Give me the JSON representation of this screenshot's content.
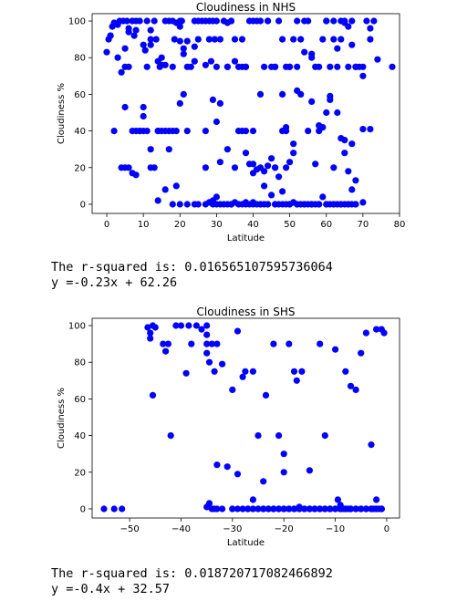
{
  "charts": [
    {
      "id": "nhs",
      "title": "Cloudiness in NHS",
      "xlabel": "Latitude",
      "ylabel": "Cloudiness %",
      "xlim": [
        -4,
        80
      ],
      "ylim": [
        -5,
        104
      ],
      "xticks": [
        0,
        10,
        20,
        30,
        40,
        50,
        60,
        70,
        80
      ],
      "yticks": [
        0,
        20,
        40,
        60,
        80,
        100
      ],
      "color": "#0000ff",
      "output": [
        "The r-squared is: 0.016565107595736064",
        "y =-0.23x + 62.26"
      ],
      "chart_data": {
        "type": "scatter",
        "x": [
          0,
          0.5,
          1,
          1.5,
          2,
          3,
          3.5,
          4.5,
          5,
          5.5,
          6,
          6,
          7,
          7.5,
          8,
          9,
          10,
          10.5,
          11,
          12,
          13,
          13.5,
          14,
          14.5,
          15,
          16,
          17,
          18,
          18.5,
          19,
          20,
          20.5,
          21,
          22,
          23,
          24,
          25,
          26,
          27,
          28,
          28.5,
          29,
          29.5,
          30,
          31,
          32,
          33,
          34,
          35,
          36,
          37,
          38,
          39,
          40,
          41,
          42,
          43,
          44,
          45,
          46,
          47,
          48,
          49,
          50,
          51,
          52,
          53,
          54,
          55,
          56,
          57,
          58,
          59,
          60,
          61,
          62,
          63,
          64,
          65,
          66,
          67,
          68,
          69,
          70,
          71,
          72,
          73,
          74,
          78,
          1,
          3,
          4,
          5,
          6,
          7,
          8,
          9,
          10,
          12,
          14,
          15,
          16,
          18,
          20,
          21,
          22,
          24,
          25,
          27,
          28,
          30,
          33,
          34,
          36,
          37,
          38,
          40,
          42,
          44,
          46,
          48,
          49,
          50,
          52,
          54,
          56,
          58,
          60,
          62,
          64,
          65,
          66,
          67,
          68,
          70,
          72,
          5,
          7,
          8,
          11,
          12,
          14,
          17,
          19,
          20,
          21,
          24,
          27,
          29,
          31,
          33,
          35,
          37,
          38,
          39,
          40,
          41,
          42,
          43,
          44,
          45,
          46,
          47,
          48,
          49,
          50,
          51,
          52,
          55,
          57,
          59,
          60,
          61,
          62,
          63,
          64,
          65,
          66,
          67,
          70,
          2,
          4,
          5,
          6,
          7,
          8,
          9,
          10,
          11,
          12,
          13,
          14,
          15,
          16,
          17,
          18,
          19,
          20,
          22,
          24,
          27,
          30,
          31,
          33,
          35,
          38,
          40,
          43,
          46,
          49,
          51,
          53,
          56,
          58,
          61,
          63,
          65,
          67,
          68,
          70,
          72,
          28,
          29,
          30,
          31,
          32,
          33,
          34,
          35,
          36,
          37,
          38,
          39,
          40,
          41,
          42,
          43,
          44,
          45,
          46,
          47,
          48,
          49,
          50,
          51,
          52,
          53,
          54,
          55,
          56,
          57,
          58,
          59,
          60,
          61,
          62,
          63,
          64,
          65,
          66,
          67,
          68,
          10,
          12,
          16,
          18,
          20,
          22,
          25,
          27,
          29,
          30,
          34,
          38,
          40,
          42,
          44,
          46,
          48,
          50,
          52,
          54,
          56,
          58,
          60,
          62,
          64,
          66,
          68
        ],
        "y": [
          83,
          90,
          92,
          97,
          99,
          98,
          100,
          100,
          75,
          100,
          96,
          94,
          100,
          92,
          100,
          100,
          87,
          84,
          100,
          95,
          100,
          90,
          78,
          75,
          76,
          100,
          100,
          75,
          90,
          99,
          100,
          100,
          82,
          75,
          75,
          86,
          90,
          100,
          100,
          100,
          78,
          100,
          90,
          100,
          90,
          100,
          75,
          100,
          90,
          75,
          75,
          75,
          100,
          40,
          100,
          100,
          75,
          100,
          75,
          75,
          100,
          90,
          75,
          75,
          90,
          100,
          90,
          83,
          100,
          80,
          75,
          75,
          90,
          100,
          75,
          100,
          75,
          100,
          100,
          75,
          100,
          75,
          75,
          75,
          100,
          90,
          100,
          79,
          75,
          92,
          80,
          72,
          85,
          75,
          40,
          95,
          40,
          48,
          90,
          40,
          80,
          76,
          100,
          97,
          85,
          89,
          78,
          100,
          40,
          90,
          75,
          75,
          100,
          40,
          90,
          75,
          100,
          60,
          100,
          75,
          60,
          42,
          75,
          75,
          100,
          82,
          40,
          100,
          90,
          90,
          99,
          97,
          87,
          75,
          70,
          96,
          53,
          100,
          40,
          75,
          87,
          40,
          30,
          10,
          89,
          60,
          100,
          76,
          57,
          55,
          99,
          78,
          40,
          28,
          22,
          17,
          19,
          20,
          18,
          21,
          25,
          20,
          15,
          40,
          20,
          23,
          33,
          62,
          40,
          22,
          42,
          50,
          59,
          20,
          50,
          36,
          28,
          18,
          8,
          1,
          40,
          20,
          20,
          20,
          17,
          16,
          40,
          40,
          40,
          30,
          20,
          2,
          40,
          40,
          40,
          40,
          40,
          55,
          40,
          0,
          20,
          45,
          23,
          30,
          20,
          40,
          22,
          10,
          20,
          40,
          28,
          60,
          56,
          43,
          57,
          85,
          35,
          33,
          13,
          41,
          41,
          1,
          0,
          0,
          0,
          0,
          0,
          0,
          1,
          0,
          0,
          1,
          0,
          1,
          0,
          0,
          0,
          0,
          5,
          0,
          0,
          7,
          0,
          0,
          1,
          0,
          0,
          0,
          0,
          0,
          0,
          0,
          4,
          0,
          0,
          0,
          0,
          0,
          0,
          0,
          0,
          0,
          53,
          20,
          8,
          0,
          0,
          0,
          0,
          0,
          2,
          4,
          0,
          0,
          0,
          0,
          0,
          0,
          0,
          0,
          0,
          0,
          0,
          0,
          0,
          0,
          0,
          0,
          0
        ]
      }
    },
    {
      "id": "shs",
      "title": "Cloudiness in SHS",
      "xlabel": "Latitude",
      "ylabel": "Cloudiness %",
      "xlim": [
        -57.3,
        2.5
      ],
      "ylim": [
        -5,
        104
      ],
      "xticks": [
        -50,
        -40,
        -30,
        -20,
        -10,
        0
      ],
      "yticks": [
        0,
        20,
        40,
        60,
        80,
        100
      ],
      "color": "#0000ff",
      "output": [
        "The r-squared is: 0.018720717082466892",
        "y =-0.4x + 32.57"
      ],
      "chart_data": {
        "type": "scatter",
        "x": [
          -55,
          -53,
          -51.5,
          -46.5,
          -46,
          -46,
          -45.5,
          -45.5,
          -43.5,
          -43,
          -42.5,
          -42,
          -41,
          -39,
          -38.5,
          -38,
          -37,
          -36,
          -35,
          -35,
          -35,
          -34.5,
          -34,
          -33.5,
          -33,
          -32,
          -30,
          -29,
          -28,
          -27.5,
          -26,
          -25,
          -24,
          -23.5,
          -22,
          -21,
          -20,
          -19,
          -18,
          -17.5,
          -16.5,
          -15,
          -14,
          -13,
          -12,
          -11,
          -10,
          -9,
          -8,
          -7,
          -6,
          -5,
          -4,
          -3,
          -2,
          -1,
          -0.5,
          -45,
          -40,
          -35,
          -33,
          -31,
          -29,
          -27,
          -26,
          -24,
          -23,
          -22,
          -21,
          -20,
          -19,
          -18,
          -17,
          -16,
          -15,
          -14,
          -13,
          -12,
          -11,
          -10,
          -9.5,
          -9,
          -8.5,
          -8,
          -7.5,
          -7,
          -6,
          -5,
          -4,
          -3,
          -2.5,
          -2,
          -1.5,
          -1,
          -35,
          -34.5,
          -34,
          -33.5,
          -33,
          -32,
          -30,
          -28,
          -27,
          -26,
          -25,
          -24,
          -23,
          -22,
          -21,
          -20,
          -19,
          -18,
          -17,
          -16,
          -15,
          -14,
          -13,
          -12,
          -11,
          -10,
          -9,
          -8,
          -7,
          -6,
          -5,
          -4,
          -3,
          -2,
          -1,
          -30,
          -29,
          -28,
          -27,
          -26,
          -25,
          -24,
          -23,
          -22,
          -21,
          -20,
          -19,
          -18,
          -17,
          -16,
          -15,
          -14,
          -13,
          -12,
          -11,
          -10,
          -9,
          -8,
          -7,
          -6,
          -5,
          -4,
          -3,
          -2,
          -1,
          -22,
          -20,
          -17,
          -15,
          -13,
          -11,
          -9,
          -7,
          -5,
          -3
        ],
        "y": [
          0,
          0,
          0,
          99,
          96,
          93,
          100,
          62,
          90,
          86,
          90,
          40,
          100,
          74,
          100,
          90,
          100,
          98,
          100,
          95,
          85,
          80,
          90,
          75,
          24,
          79,
          65,
          97,
          72,
          75,
          75,
          40,
          15,
          62,
          90,
          40,
          30,
          90,
          75,
          70,
          75,
          21,
          0,
          90,
          40,
          0,
          87,
          0,
          75,
          67,
          65,
          85,
          96,
          35,
          98,
          98,
          96,
          99,
          100,
          90,
          90,
          23,
          19,
          0,
          5,
          0,
          0,
          0,
          0,
          0,
          0,
          0,
          1,
          0,
          0,
          0,
          0,
          0,
          0,
          0,
          5,
          2,
          0,
          0,
          0,
          0,
          0,
          0,
          0,
          0,
          0,
          5,
          0,
          0,
          1,
          3,
          0,
          0,
          0,
          0,
          0,
          0,
          0,
          0,
          0,
          0,
          0,
          0,
          0,
          0,
          0,
          0,
          0,
          0,
          0,
          0,
          0,
          0,
          0,
          0,
          0,
          0,
          0,
          0,
          0,
          0,
          0,
          0,
          0,
          0,
          0,
          0,
          0,
          0,
          0,
          0,
          0,
          0,
          0,
          0,
          0,
          0,
          0,
          0,
          0,
          0,
          0,
          0,
          0,
          0,
          0,
          0,
          0,
          0,
          0,
          0,
          0,
          0,
          0,
          0,
          20,
          0,
          0,
          0,
          0,
          0,
          0,
          0,
          0
        ]
      }
    }
  ]
}
